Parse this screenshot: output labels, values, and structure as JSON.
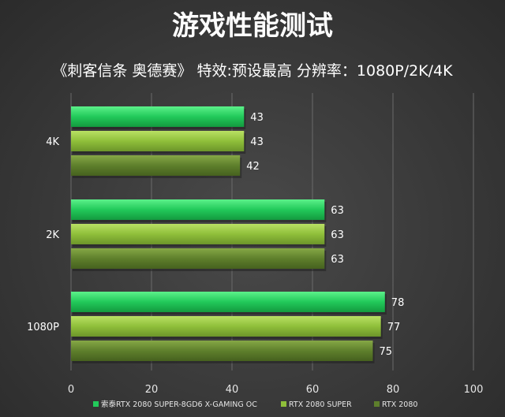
{
  "chart_data": {
    "type": "bar",
    "orientation": "horizontal",
    "title": "游戏性能测试",
    "subtitle": "《刺客信条 奥德赛》  特效:预设最高  分辨率：1080P/2K/4K",
    "categories": [
      "4K",
      "2K",
      "1080P"
    ],
    "series": [
      {
        "name": "索泰RTX 2080 SUPER-8GD6 X-GAMING OC",
        "values": [
          43,
          63,
          78
        ],
        "color": "#22c95a"
      },
      {
        "name": "RTX 2080 SUPER",
        "values": [
          43,
          63,
          77
        ],
        "color": "#8fbf3a"
      },
      {
        "name": "RTX 2080",
        "values": [
          42,
          63,
          75
        ],
        "color": "#5e7f2c"
      }
    ],
    "xlim": [
      0,
      100
    ],
    "xticks": [
      "0",
      "20",
      "40",
      "60",
      "80",
      "100"
    ],
    "grid": true,
    "legend_position": "bottom"
  }
}
